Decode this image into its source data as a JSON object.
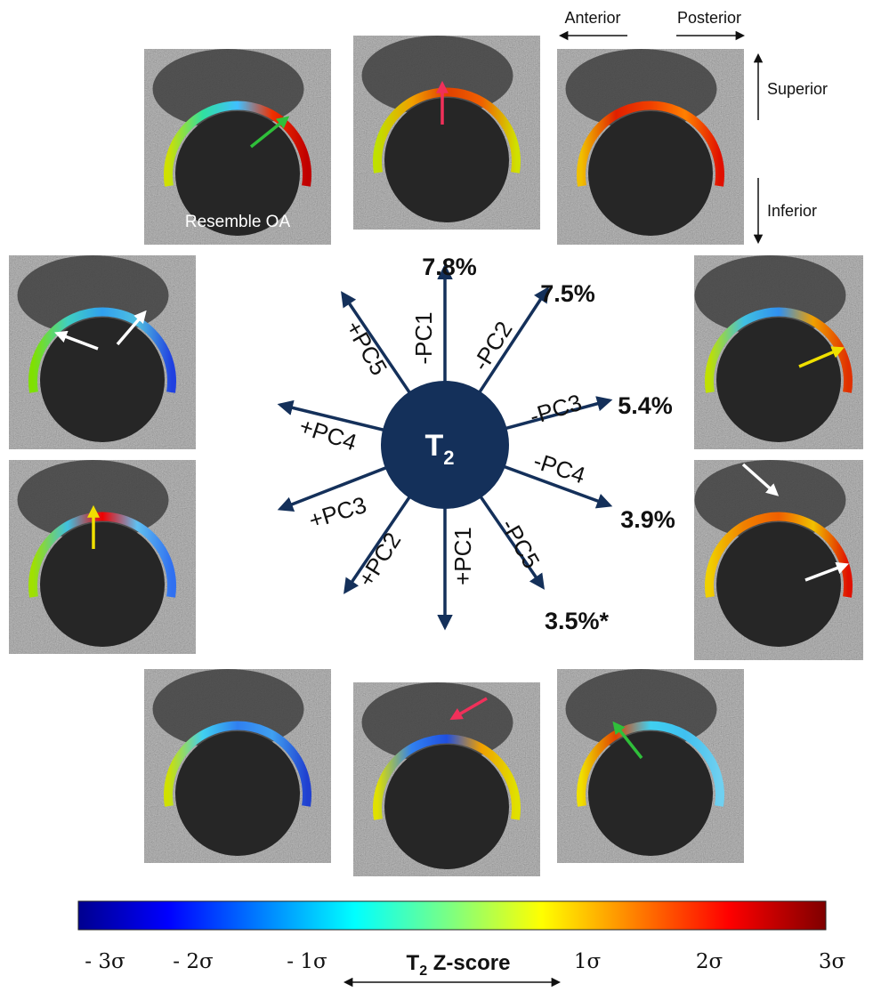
{
  "orientation": {
    "anterior": "Anterior",
    "posterior": "Posterior",
    "superior": "Superior",
    "inferior": "Inferior"
  },
  "panel_note": "Resemble OA",
  "center": {
    "symbol": "T",
    "subscript": "2"
  },
  "axes": [
    {
      "negative": "-PC1",
      "positive": "+PC1",
      "variance": "7.8%"
    },
    {
      "negative": "-PC2",
      "positive": "+PC2",
      "variance": "7.5%"
    },
    {
      "negative": "-PC3",
      "positive": "+PC3",
      "variance": "5.4%"
    },
    {
      "negative": "-PC4",
      "positive": "+PC4",
      "variance": "3.9%"
    },
    {
      "negative": "-PC5",
      "positive": "+PC5",
      "variance": "3.5%*"
    }
  ],
  "colorbar": {
    "title": {
      "symbol": "T",
      "subscript": "2",
      "text": "Z-score"
    },
    "ticks": [
      "- 3σ",
      "- 2σ",
      "- 1σ",
      "1σ",
      "2σ",
      "3σ"
    ]
  }
}
